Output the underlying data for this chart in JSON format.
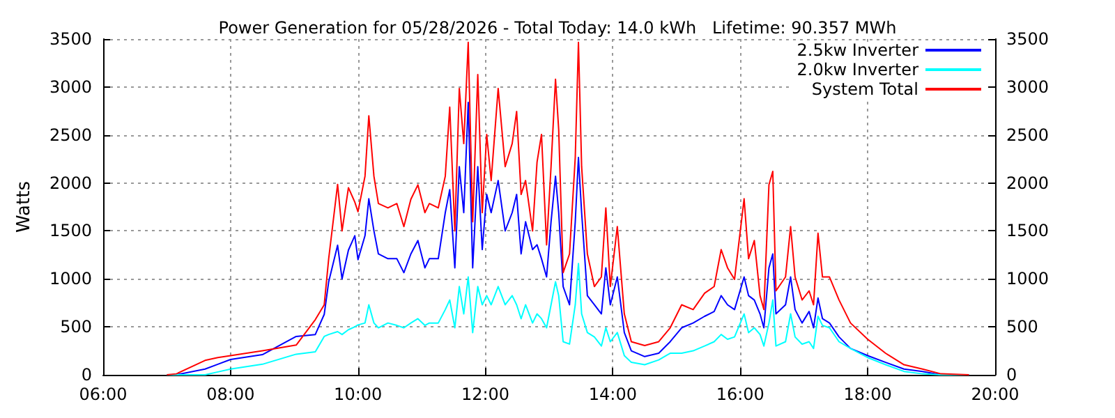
{
  "chart_data": {
    "type": "line",
    "title": "Power Generation for 05/28/2026 - Total Today: 14.0 kWh   Lifetime: 90.357 MWh",
    "ylabel": "Watts",
    "x": [
      7.0,
      7.15,
      7.6,
      7.8,
      8.0,
      8.5,
      9.03,
      9.33,
      9.47,
      9.54,
      9.68,
      9.75,
      9.85,
      9.95,
      10.0,
      10.11,
      10.17,
      10.25,
      10.32,
      10.47,
      10.61,
      10.72,
      10.83,
      10.94,
      11.05,
      11.12,
      11.26,
      11.37,
      11.44,
      11.52,
      11.59,
      11.66,
      11.73,
      11.8,
      11.88,
      11.95,
      12.02,
      12.09,
      12.2,
      12.31,
      12.42,
      12.49,
      12.56,
      12.63,
      12.74,
      12.81,
      12.88,
      12.96,
      13.03,
      13.1,
      13.15,
      13.22,
      13.32,
      13.41,
      13.46,
      13.51,
      13.6,
      13.71,
      13.82,
      13.89,
      13.96,
      14.07,
      14.18,
      14.29,
      14.5,
      14.72,
      14.9,
      15.08,
      15.26,
      15.44,
      15.59,
      15.7,
      15.8,
      15.91,
      16.06,
      16.13,
      16.22,
      16.31,
      16.37,
      16.45,
      16.51,
      16.56,
      16.71,
      16.79,
      16.86,
      16.97,
      17.08,
      17.15,
      17.22,
      17.29,
      17.4,
      17.55,
      17.73,
      18.0,
      18.28,
      18.57,
      18.86,
      19.15,
      19.59
    ],
    "series": [
      {
        "name": "2.5kw Inverter",
        "color": "#0000ff",
        "values": [
          0,
          0,
          60,
          110,
          160,
          210,
          400,
          420,
          630,
          970,
          1350,
          1000,
          1300,
          1450,
          1200,
          1450,
          1835,
          1500,
          1260,
          1210,
          1210,
          1065,
          1260,
          1400,
          1115,
          1210,
          1210,
          1690,
          1930,
          1115,
          2170,
          1690,
          2840,
          1115,
          2170,
          1305,
          1880,
          1690,
          2025,
          1500,
          1690,
          1880,
          1260,
          1595,
          1305,
          1355,
          1210,
          1020,
          1595,
          2070,
          1690,
          920,
          730,
          1595,
          2265,
          1690,
          825,
          730,
          635,
          1115,
          730,
          1020,
          440,
          250,
          190,
          225,
          345,
          490,
          540,
          610,
          660,
          825,
          730,
          680,
          1020,
          825,
          780,
          635,
          490,
          1115,
          1260,
          635,
          730,
          1020,
          680,
          540,
          660,
          490,
          800,
          585,
          540,
          395,
          275,
          200,
          130,
          60,
          35,
          0,
          0
        ]
      },
      {
        "name": "2.0kw Inverter",
        "color": "#00ffff",
        "values": [
          0,
          0,
          0,
          30,
          60,
          110,
          215,
          240,
          400,
          420,
          450,
          420,
          470,
          500,
          520,
          540,
          730,
          540,
          490,
          540,
          515,
          490,
          540,
          585,
          515,
          540,
          540,
          680,
          780,
          490,
          920,
          635,
          1020,
          440,
          920,
          730,
          825,
          730,
          920,
          730,
          825,
          730,
          585,
          730,
          540,
          635,
          585,
          490,
          730,
          970,
          825,
          345,
          320,
          730,
          1160,
          635,
          440,
          395,
          300,
          490,
          345,
          440,
          200,
          130,
          105,
          155,
          225,
          225,
          250,
          300,
          345,
          420,
          370,
          395,
          635,
          440,
          490,
          420,
          300,
          540,
          780,
          300,
          345,
          635,
          395,
          320,
          345,
          275,
          610,
          515,
          490,
          345,
          275,
          180,
          105,
          35,
          10,
          0,
          0
        ]
      },
      {
        "name": "System Total",
        "color": "#ff0000",
        "values": [
          0,
          10,
          150,
          180,
          200,
          250,
          310,
          575,
          730,
          1210,
          1985,
          1500,
          1950,
          1800,
          1700,
          2070,
          2700,
          2070,
          1785,
          1740,
          1785,
          1545,
          1830,
          1980,
          1690,
          1785,
          1740,
          2070,
          2790,
          1500,
          2985,
          2410,
          3465,
          1595,
          3130,
          1690,
          2505,
          2025,
          2985,
          2170,
          2410,
          2745,
          1880,
          2025,
          1500,
          2215,
          2505,
          1355,
          2170,
          3080,
          2555,
          1065,
          1260,
          2265,
          3465,
          2170,
          1260,
          920,
          1020,
          1740,
          920,
          1545,
          635,
          345,
          305,
          345,
          490,
          730,
          680,
          850,
          920,
          1305,
          1115,
          995,
          1835,
          1210,
          1400,
          825,
          680,
          1980,
          2120,
          875,
          1020,
          1545,
          1020,
          780,
          875,
          730,
          1475,
          1020,
          1020,
          780,
          540,
          370,
          225,
          105,
          60,
          10,
          0
        ]
      }
    ],
    "xlim": [
      6,
      20
    ],
    "xticks": [
      {
        "value": 6,
        "label": "06:00"
      },
      {
        "value": 8,
        "label": "08:00"
      },
      {
        "value": 10,
        "label": "10:00"
      },
      {
        "value": 12,
        "label": "12:00"
      },
      {
        "value": 14,
        "label": "14:00"
      },
      {
        "value": 16,
        "label": "16:00"
      },
      {
        "value": 18,
        "label": "18:00"
      },
      {
        "value": 20,
        "label": "20:00"
      }
    ],
    "ylim": [
      0,
      3500
    ],
    "yticks": [
      0,
      500,
      1000,
      1500,
      2000,
      2500,
      3000,
      3500
    ],
    "y2lim": [
      0,
      3500
    ],
    "y2ticks": [
      0,
      500,
      1000,
      1500,
      2000,
      2500,
      3000,
      3500
    ],
    "grid": true,
    "legend": "top right",
    "marker": "none",
    "line_style": "solid"
  }
}
